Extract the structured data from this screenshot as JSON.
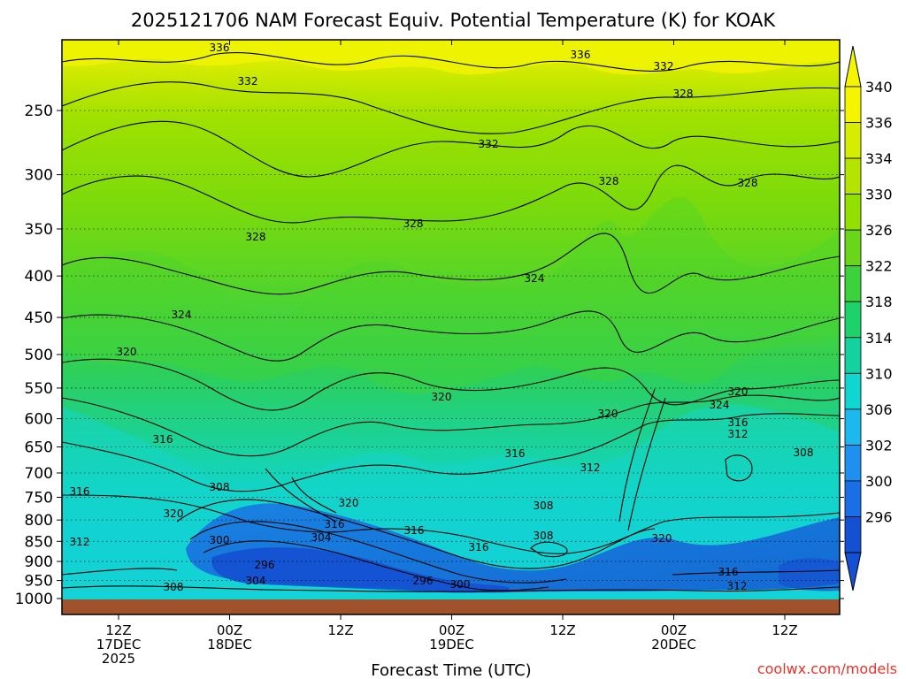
{
  "chart_data": {
    "type": "heatmap",
    "title": "2025121706 NAM Forecast Equiv. Potential Temperature (K) for KOAK",
    "xlabel": "Forecast Time (UTC)",
    "ylabel": "",
    "credit": "coolwx.com/models",
    "y_scale": "log",
    "y_ticks": [
      250,
      300,
      350,
      400,
      450,
      500,
      550,
      600,
      650,
      700,
      750,
      800,
      850,
      900,
      950,
      1000
    ],
    "x_ticks": [
      {
        "l1": "12Z",
        "l2": "17DEC",
        "l3": "2025"
      },
      {
        "l1": "00Z",
        "l2": "18DEC",
        "l3": ""
      },
      {
        "l1": "12Z",
        "l2": "",
        "l3": ""
      },
      {
        "l1": "00Z",
        "l2": "19DEC",
        "l3": ""
      },
      {
        "l1": "12Z",
        "l2": "",
        "l3": ""
      },
      {
        "l1": "00Z",
        "l2": "20DEC",
        "l3": ""
      },
      {
        "l1": "12Z",
        "l2": "",
        "l3": ""
      }
    ],
    "colorbar": {
      "ticks": [
        340,
        336,
        334,
        330,
        326,
        322,
        318,
        314,
        310,
        306,
        302,
        300,
        296
      ],
      "colors": [
        "#f5f500",
        "#d6ec00",
        "#b4e400",
        "#92df00",
        "#6ad61a",
        "#3cd23c",
        "#1ed26a",
        "#14d2a0",
        "#10d6d2",
        "#1cb8ee",
        "#1e90f0",
        "#1a6ee6",
        "#1450d2"
      ]
    },
    "grid": "dotted horizontal at pressure ticks",
    "contour_labels": [
      "336",
      "336",
      "332",
      "332",
      "328",
      "332",
      "328",
      "328",
      "328",
      "328",
      "324",
      "324",
      "320",
      "320",
      "320",
      "324",
      "320",
      "316",
      "316",
      "312",
      "316",
      "312",
      "308",
      "308",
      "316",
      "320",
      "320",
      "316",
      "308",
      "316",
      "308",
      "320",
      "316",
      "312",
      "300",
      "304",
      "296",
      "304",
      "296",
      "300",
      "308",
      "316",
      "312"
    ]
  }
}
